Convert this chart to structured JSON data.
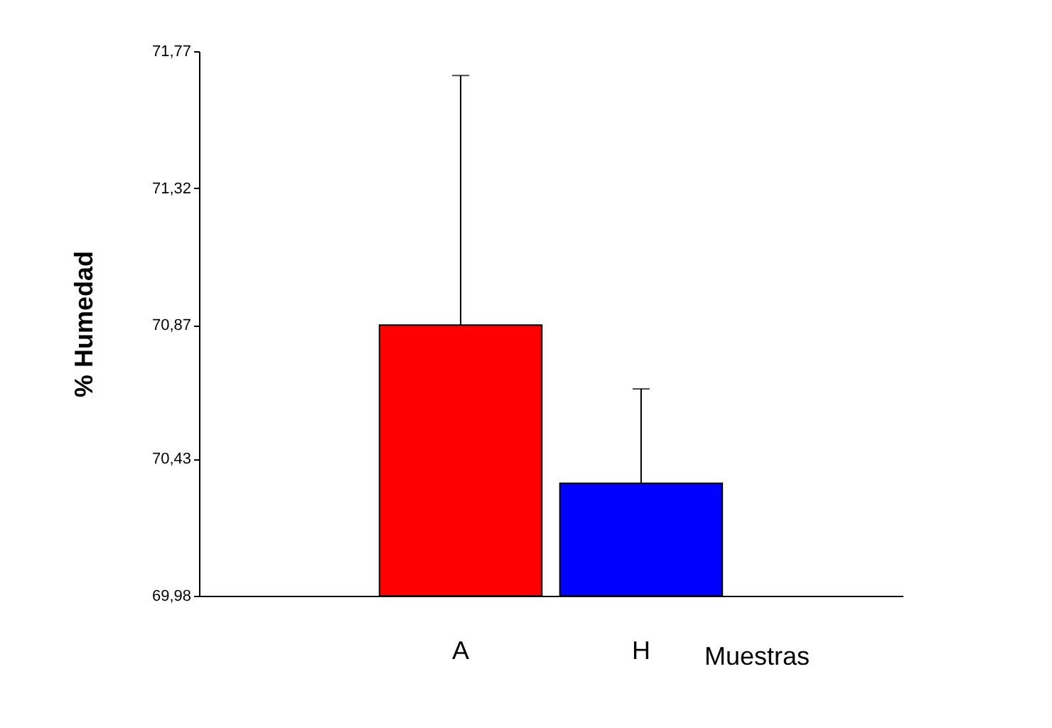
{
  "chart_data": {
    "type": "bar",
    "xlabel": "Muestras",
    "ylabel": "% Humedad",
    "categories": [
      "A",
      "H"
    ],
    "values": [
      70.87,
      70.35
    ],
    "colors": [
      "#ff0000",
      "#0000ff"
    ],
    "errors": [
      0.82,
      0.31
    ],
    "ylim": [
      69.98,
      71.77
    ],
    "yticks": [
      {
        "value": 69.98,
        "label": "69,98"
      },
      {
        "value": 70.43,
        "label": "70,43"
      },
      {
        "value": 70.87,
        "label": "70,87"
      },
      {
        "value": 71.32,
        "label": "71,32"
      },
      {
        "value": 71.77,
        "label": "71,77"
      }
    ],
    "grid": false,
    "legend": false
  }
}
